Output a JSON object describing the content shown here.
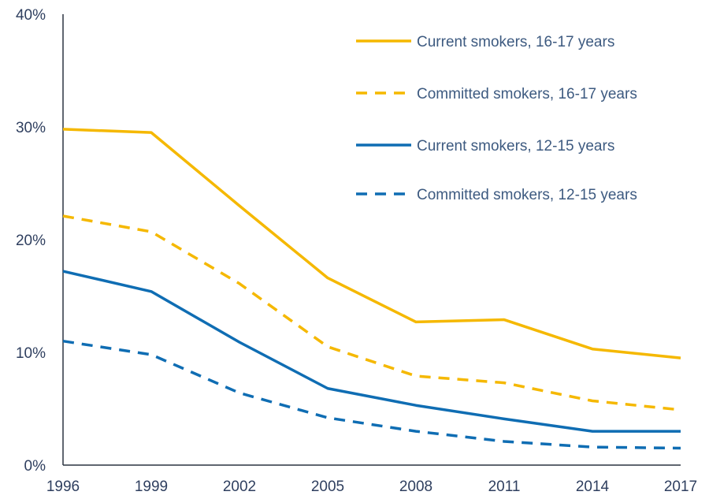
{
  "chart_data": {
    "type": "line",
    "x": [
      "1996",
      "1999",
      "2002",
      "2005",
      "2008",
      "2011",
      "2014",
      "2017"
    ],
    "ylim": [
      0,
      40
    ],
    "yticks": [
      "0%",
      "10%",
      "20%",
      "30%",
      "40%"
    ],
    "xlabel": "",
    "ylabel": "",
    "title": "",
    "legend_position": "top-right",
    "grid": false,
    "series": [
      {
        "name": "Current smokers, 16-17 years",
        "values": [
          29.8,
          29.5,
          23.0,
          16.6,
          12.7,
          12.9,
          10.3,
          9.5
        ],
        "color": "#f5b800",
        "dash": "solid"
      },
      {
        "name": "Committed smokers,  16-17 years",
        "values": [
          22.1,
          20.7,
          16.1,
          10.5,
          7.9,
          7.3,
          5.7,
          4.9
        ],
        "color": "#f5b800",
        "dash": "dashed"
      },
      {
        "name": "Current smokers, 12-15 years",
        "values": [
          17.2,
          15.4,
          10.9,
          6.8,
          5.3,
          4.1,
          3.0,
          3.0
        ],
        "color": "#0f6db3",
        "dash": "solid"
      },
      {
        "name": "Committed smokers,  12-15 years",
        "values": [
          11.0,
          9.8,
          6.4,
          4.2,
          3.0,
          2.1,
          1.6,
          1.5
        ],
        "color": "#0f6db3",
        "dash": "dashed"
      }
    ]
  }
}
